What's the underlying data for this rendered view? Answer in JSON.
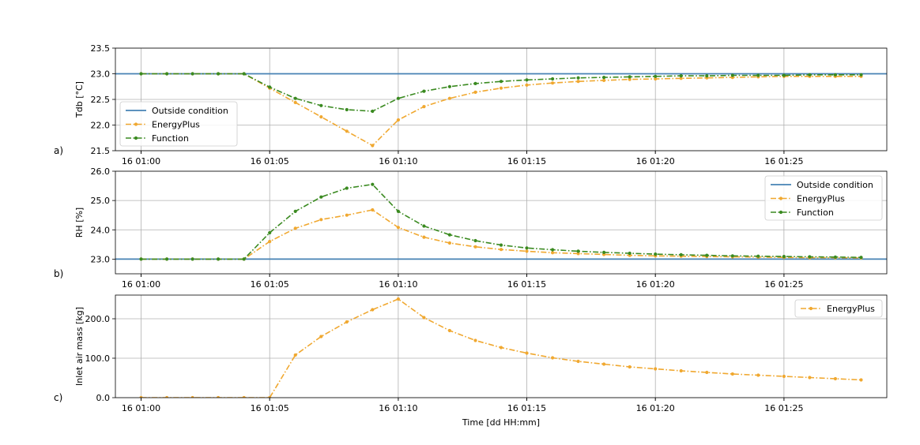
{
  "figure": {
    "xlabel": "Time [dd HH:mm]"
  },
  "chart_data": [
    {
      "type": "line",
      "panel_label": "a)",
      "ylabel": "Tdb [°C]",
      "x": [
        "16 01:00",
        "16 01:01",
        "16 01:02",
        "16 01:03",
        "16 01:04",
        "16 01:05",
        "16 01:06",
        "16 01:07",
        "16 01:08",
        "16 01:09",
        "16 01:10",
        "16 01:11",
        "16 01:12",
        "16 01:13",
        "16 01:14",
        "16 01:15",
        "16 01:16",
        "16 01:17",
        "16 01:18",
        "16 01:19",
        "16 01:20",
        "16 01:21",
        "16 01:22",
        "16 01:23",
        "16 01:24",
        "16 01:25",
        "16 01:26",
        "16 01:27",
        "16 01:28"
      ],
      "xticks": [
        "16 01:00",
        "16 01:05",
        "16 01:10",
        "16 01:15",
        "16 01:20",
        "16 01:25"
      ],
      "xlim": [
        "16 00:59",
        "16 01:29"
      ],
      "ylim": [
        21.5,
        23.5
      ],
      "yticks": [
        "21.5",
        "22.0",
        "22.5",
        "23.0",
        "23.5"
      ],
      "legend_position": "lower-left",
      "grid": true,
      "series": [
        {
          "name": "Outside condition",
          "color": "#4682b4",
          "style": "solid",
          "marker": false,
          "values": [
            23.0,
            23.0,
            23.0,
            23.0,
            23.0,
            23.0,
            23.0,
            23.0,
            23.0,
            23.0,
            23.0,
            23.0,
            23.0,
            23.0,
            23.0,
            23.0,
            23.0,
            23.0,
            23.0,
            23.0,
            23.0,
            23.0,
            23.0,
            23.0,
            23.0,
            23.0,
            23.0,
            23.0,
            23.0
          ]
        },
        {
          "name": "EnergyPlus",
          "color": "#f0a830",
          "style": "dashdot",
          "marker": true,
          "values": [
            23.0,
            23.0,
            23.0,
            23.0,
            23.0,
            22.72,
            22.44,
            22.16,
            21.88,
            21.6,
            22.1,
            22.36,
            22.52,
            22.64,
            22.72,
            22.78,
            22.82,
            22.85,
            22.87,
            22.89,
            22.9,
            22.91,
            22.92,
            22.93,
            22.94,
            22.95,
            22.95,
            22.95,
            22.95
          ]
        },
        {
          "name": "Function",
          "color": "#3a8a20",
          "style": "dashdot",
          "marker": true,
          "values": [
            23.0,
            23.0,
            23.0,
            23.0,
            23.0,
            22.74,
            22.52,
            22.38,
            22.3,
            22.27,
            22.52,
            22.66,
            22.75,
            22.81,
            22.85,
            22.88,
            22.9,
            22.92,
            22.93,
            22.94,
            22.95,
            22.96,
            22.96,
            22.97,
            22.97,
            22.97,
            22.98,
            22.98,
            22.98
          ]
        }
      ]
    },
    {
      "type": "line",
      "panel_label": "b)",
      "ylabel": "RH [%]",
      "x": [
        "16 01:00",
        "16 01:01",
        "16 01:02",
        "16 01:03",
        "16 01:04",
        "16 01:05",
        "16 01:06",
        "16 01:07",
        "16 01:08",
        "16 01:09",
        "16 01:10",
        "16 01:11",
        "16 01:12",
        "16 01:13",
        "16 01:14",
        "16 01:15",
        "16 01:16",
        "16 01:17",
        "16 01:18",
        "16 01:19",
        "16 01:20",
        "16 01:21",
        "16 01:22",
        "16 01:23",
        "16 01:24",
        "16 01:25",
        "16 01:26",
        "16 01:27",
        "16 01:28"
      ],
      "xticks": [
        "16 01:00",
        "16 01:05",
        "16 01:10",
        "16 01:15",
        "16 01:20",
        "16 01:25"
      ],
      "xlim": [
        "16 00:59",
        "16 01:29"
      ],
      "ylim": [
        22.5,
        26.0
      ],
      "yticks": [
        "23.0",
        "24.0",
        "25.0",
        "26.0"
      ],
      "legend_position": "upper-right",
      "grid": true,
      "series": [
        {
          "name": "Outside condition",
          "color": "#4682b4",
          "style": "solid",
          "marker": false,
          "values": [
            23.0,
            23.0,
            23.0,
            23.0,
            23.0,
            23.0,
            23.0,
            23.0,
            23.0,
            23.0,
            23.0,
            23.0,
            23.0,
            23.0,
            23.0,
            23.0,
            23.0,
            23.0,
            23.0,
            23.0,
            23.0,
            23.0,
            23.0,
            23.0,
            23.0,
            23.0,
            23.0,
            23.0,
            23.0
          ]
        },
        {
          "name": "EnergyPlus",
          "color": "#f0a830",
          "style": "dashdot",
          "marker": true,
          "values": [
            23.0,
            23.0,
            23.0,
            23.0,
            23.0,
            23.6,
            24.05,
            24.35,
            24.5,
            24.68,
            24.08,
            23.75,
            23.55,
            23.42,
            23.33,
            23.27,
            23.22,
            23.19,
            23.16,
            23.13,
            23.11,
            23.1,
            23.09,
            23.08,
            23.07,
            23.06,
            23.05,
            23.05,
            23.04
          ]
        },
        {
          "name": "Function",
          "color": "#3a8a20",
          "style": "dashdot",
          "marker": true,
          "values": [
            23.0,
            23.0,
            23.0,
            23.0,
            23.0,
            23.9,
            24.63,
            25.12,
            25.42,
            25.55,
            24.63,
            24.13,
            23.83,
            23.63,
            23.48,
            23.38,
            23.32,
            23.27,
            23.23,
            23.2,
            23.17,
            23.15,
            23.13,
            23.11,
            23.1,
            23.09,
            23.08,
            23.07,
            23.06
          ]
        }
      ]
    },
    {
      "type": "line",
      "panel_label": "c)",
      "ylabel": "Inlet air mass [kg]",
      "x": [
        "16 01:00",
        "16 01:01",
        "16 01:02",
        "16 01:03",
        "16 01:04",
        "16 01:05",
        "16 01:06",
        "16 01:07",
        "16 01:08",
        "16 01:09",
        "16 01:10",
        "16 01:11",
        "16 01:12",
        "16 01:13",
        "16 01:14",
        "16 01:15",
        "16 01:16",
        "16 01:17",
        "16 01:18",
        "16 01:19",
        "16 01:20",
        "16 01:21",
        "16 01:22",
        "16 01:23",
        "16 01:24",
        "16 01:25",
        "16 01:26",
        "16 01:27",
        "16 01:28"
      ],
      "xticks": [
        "16 01:00",
        "16 01:05",
        "16 01:10",
        "16 01:15",
        "16 01:20",
        "16 01:25"
      ],
      "xlim": [
        "16 00:59",
        "16 01:29"
      ],
      "ylim": [
        0,
        260
      ],
      "yticks": [
        "0.0",
        "100.0",
        "200.0"
      ],
      "legend_position": "upper-right",
      "grid": true,
      "series": [
        {
          "name": "EnergyPlus",
          "color": "#f0a830",
          "style": "dashdot",
          "marker": true,
          "values": [
            0,
            0,
            0,
            0,
            0,
            0,
            108,
            155,
            192,
            223,
            250,
            203,
            170,
            145,
            127,
            113,
            101,
            92,
            85,
            78,
            73,
            68,
            64,
            60,
            57,
            54,
            51,
            48,
            45
          ]
        }
      ]
    }
  ]
}
